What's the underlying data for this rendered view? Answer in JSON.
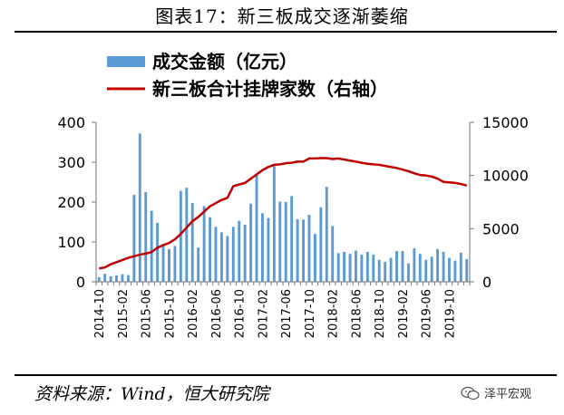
{
  "header": {
    "title": "图表17：新三板成交逐渐萎缩"
  },
  "footer": {
    "source": "资料来源：Wind，恒大研究院",
    "brand": "泽平宏观"
  },
  "chart_data": {
    "type": "bar+line",
    "title": "图表17：新三板成交逐渐萎缩",
    "series": [
      {
        "name": "成交金额（亿元）",
        "type": "bar",
        "axis": "left",
        "color": "#5b9bd5",
        "values": [
          12,
          20,
          14,
          16,
          19,
          17,
          218,
          372,
          225,
          178,
          148,
          95,
          82,
          90,
          228,
          236,
          198,
          86,
          190,
          162,
          138,
          124,
          115,
          138,
          153,
          143,
          196,
          270,
          172,
          160,
          290,
          201,
          200,
          215,
          157,
          156,
          168,
          120,
          187,
          238,
          140,
          72,
          75,
          70,
          78,
          68,
          75,
          68,
          55,
          50,
          60,
          77,
          77,
          46,
          84,
          70,
          55,
          63,
          82,
          75,
          60,
          53,
          73,
          57
        ]
      },
      {
        "name": "新三板合计挂牌家数（右轴）",
        "type": "line",
        "axis": "right",
        "color": "#c00000",
        "values": [
          1250,
          1350,
          1650,
          1850,
          2050,
          2250,
          2400,
          2550,
          2650,
          2800,
          3200,
          3450,
          3650,
          4000,
          4500,
          5100,
          5700,
          6100,
          6600,
          7100,
          7400,
          7700,
          7900,
          9000,
          9150,
          9300,
          9700,
          10100,
          10500,
          10800,
          11000,
          11050,
          11150,
          11200,
          11300,
          11300,
          11600,
          11600,
          11630,
          11630,
          11550,
          11600,
          11500,
          11400,
          11300,
          11200,
          11100,
          11050,
          11000,
          10900,
          10800,
          10700,
          10550,
          10400,
          10200,
          10050,
          10000,
          9900,
          9700,
          9400,
          9350,
          9300,
          9200,
          9050
        ]
      }
    ],
    "x_tick_labels": [
      "2014-10",
      "2015-02",
      "2015-06",
      "2015-10",
      "2016-02",
      "2016-06",
      "2016-10",
      "2017-02",
      "2017-06",
      "2017-10",
      "2018-02",
      "2018-06",
      "2018-10",
      "2019-02",
      "2019-06",
      "2019-10"
    ],
    "y_left": {
      "ticks": [
        0,
        100,
        200,
        300,
        400
      ],
      "ylim": [
        0,
        400
      ]
    },
    "y_right": {
      "ticks": [
        0,
        5000,
        10000,
        15000
      ],
      "ylim": [
        0,
        15000
      ]
    },
    "legend": [
      {
        "label": "成交金额（亿元）",
        "marker": "bar",
        "color": "#5b9bd5"
      },
      {
        "label": "新三板合计挂牌家数（右轴）",
        "marker": "line",
        "color": "#c00000"
      }
    ],
    "legend_position": "top-left",
    "grid": false
  }
}
